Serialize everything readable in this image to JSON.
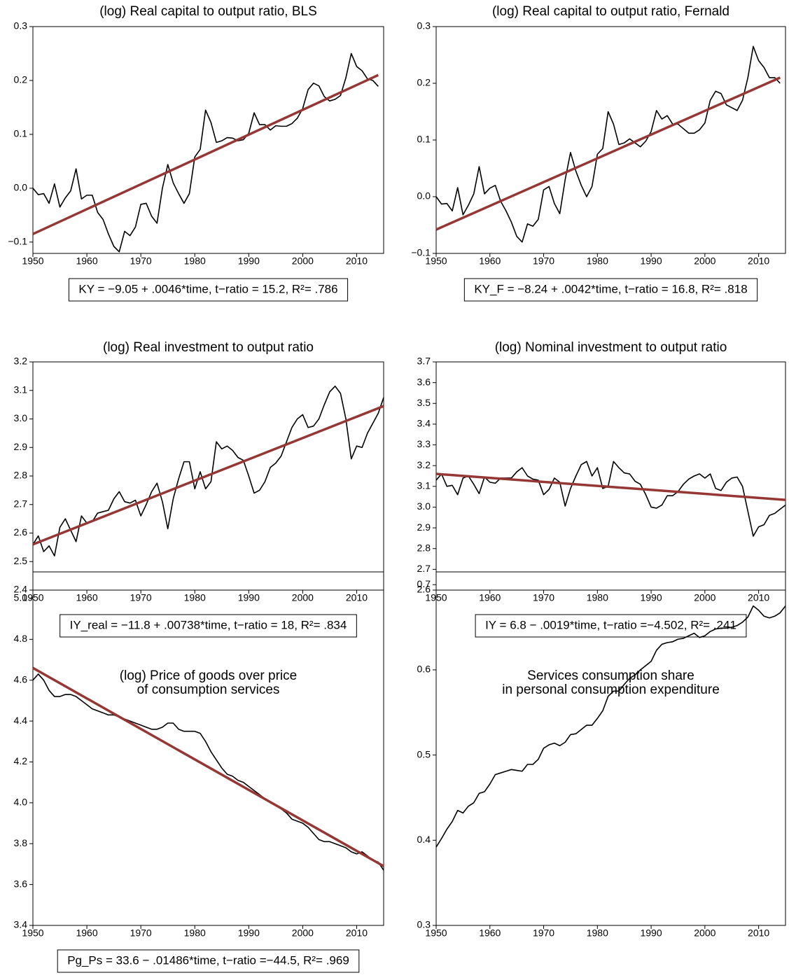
{
  "chart_data": [
    {
      "type": "line",
      "title": [
        "(log) Real capital to output ratio, BLS"
      ],
      "annotation": "KY = −9.05 +  .0046*time, t−ratio = 15.2,  R²= .786",
      "x": [
        1950,
        1951,
        1952,
        1953,
        1954,
        1955,
        1956,
        1957,
        1958,
        1959,
        1960,
        1961,
        1962,
        1963,
        1964,
        1965,
        1966,
        1967,
        1968,
        1969,
        1970,
        1971,
        1972,
        1973,
        1974,
        1975,
        1976,
        1977,
        1978,
        1979,
        1980,
        1981,
        1982,
        1983,
        1984,
        1985,
        1986,
        1987,
        1988,
        1989,
        1990,
        1991,
        1992,
        1993,
        1994,
        1995,
        1996,
        1997,
        1998,
        1999,
        2000,
        2001,
        2002,
        2003,
        2004,
        2005,
        2006,
        2007,
        2008,
        2009,
        2010,
        2011,
        2012,
        2013,
        2014
      ],
      "series": [
        {
          "color": "#000000",
          "values": [
            0,
            -0.012,
            -0.01,
            -0.028,
            0.008,
            -0.035,
            -0.018,
            -0.005,
            0.036,
            -0.02,
            -0.013,
            -0.013,
            -0.045,
            -0.058,
            -0.085,
            -0.108,
            -0.118,
            -0.08,
            -0.088,
            -0.072,
            -0.03,
            -0.028,
            -0.052,
            -0.065,
            0,
            0.044,
            0.01,
            -0.01,
            -0.028,
            -0.01,
            0.058,
            0.072,
            0.145,
            0.122,
            0.085,
            0.088,
            0.094,
            0.093,
            0.088,
            0.09,
            0.102,
            0.14,
            0.118,
            0.118,
            0.108,
            0.116,
            0.115,
            0.115,
            0.12,
            0.13,
            0.148,
            0.183,
            0.195,
            0.19,
            0.17,
            0.162,
            0.165,
            0.172,
            0.205,
            0.25,
            0.226,
            0.218,
            0.203,
            0.2,
            0.189
          ]
        },
        {
          "color": "#953735",
          "x": [
            1950,
            2014
          ],
          "values": [
            -0.085,
            0.21
          ]
        }
      ],
      "xlim": [
        1950,
        2015
      ],
      "xticks": [
        1950,
        1960,
        1970,
        1980,
        1990,
        2000,
        2010
      ],
      "ylim": [
        -0.121,
        0.3
      ],
      "yticks": [
        {
          "value": -0.1,
          "label": "−0.1"
        },
        {
          "value": 0,
          "label": "0.0"
        },
        0.1,
        0.2,
        0.3
      ]
    },
    {
      "type": "line",
      "title": [
        "(log) Real capital to output ratio, Fernald"
      ],
      "annotation": "KY_F = −8.24 +  .0042*time, t−ratio = 16.8,  R²= .818",
      "x": [
        1950,
        1951,
        1952,
        1953,
        1954,
        1955,
        1956,
        1957,
        1958,
        1959,
        1960,
        1961,
        1962,
        1963,
        1964,
        1965,
        1966,
        1967,
        1968,
        1969,
        1970,
        1971,
        1972,
        1973,
        1974,
        1975,
        1976,
        1977,
        1978,
        1979,
        1980,
        1981,
        1982,
        1983,
        1984,
        1985,
        1986,
        1987,
        1988,
        1989,
        1990,
        1991,
        1992,
        1993,
        1994,
        1995,
        1996,
        1997,
        1998,
        1999,
        2000,
        2001,
        2002,
        2003,
        2004,
        2005,
        2006,
        2007,
        2008,
        2009,
        2010,
        2011,
        2012,
        2013,
        2014
      ],
      "series": [
        {
          "color": "#000000",
          "values": [
            0,
            -0.013,
            -0.012,
            -0.025,
            0.016,
            -0.032,
            -0.015,
            0.005,
            0.053,
            0.005,
            0.015,
            0.02,
            -0.008,
            -0.025,
            -0.045,
            -0.07,
            -0.08,
            -0.048,
            -0.052,
            -0.04,
            0.012,
            0.018,
            -0.012,
            -0.03,
            0.03,
            0.078,
            0.045,
            0.02,
            0,
            0.018,
            0.075,
            0.085,
            0.15,
            0.128,
            0.092,
            0.095,
            0.102,
            0.095,
            0.088,
            0.098,
            0.115,
            0.152,
            0.137,
            0.143,
            0.128,
            0.128,
            0.12,
            0.112,
            0.112,
            0.118,
            0.13,
            0.17,
            0.186,
            0.182,
            0.162,
            0.157,
            0.152,
            0.17,
            0.21,
            0.265,
            0.24,
            0.228,
            0.21,
            0.21,
            0.2
          ]
        },
        {
          "color": "#953735",
          "x": [
            1950,
            2014
          ],
          "values": [
            -0.058,
            0.21
          ]
        }
      ],
      "xlim": [
        1950,
        2015
      ],
      "xticks": [
        1950,
        1960,
        1970,
        1980,
        1990,
        2000,
        2010
      ],
      "ylim": [
        -0.1,
        0.3
      ],
      "yticks": [
        {
          "value": -0.1,
          "label": "−0.1"
        },
        {
          "value": 0,
          "label": "0.0"
        },
        0.1,
        0.2,
        0.3
      ]
    },
    {
      "type": "line",
      "title": [
        "(log) Real investment to output ratio"
      ],
      "annotation": "IY_real = −11.8 + .00738*time, t−ratio =   18,  R²= .834",
      "x": [
        1950,
        1951,
        1952,
        1953,
        1954,
        1955,
        1956,
        1957,
        1958,
        1959,
        1960,
        1961,
        1962,
        1963,
        1964,
        1965,
        1966,
        1967,
        1968,
        1969,
        1970,
        1971,
        1972,
        1973,
        1974,
        1975,
        1976,
        1977,
        1978,
        1979,
        1980,
        1981,
        1982,
        1983,
        1984,
        1985,
        1986,
        1987,
        1988,
        1989,
        1990,
        1991,
        1992,
        1993,
        1994,
        1995,
        1996,
        1997,
        1998,
        1999,
        2000,
        2001,
        2002,
        2003,
        2004,
        2005,
        2006,
        2007,
        2008,
        2009,
        2010,
        2011,
        2012,
        2013,
        2014,
        2015
      ],
      "series": [
        {
          "color": "#000000",
          "values": [
            2.56,
            2.59,
            2.535,
            2.555,
            2.52,
            2.62,
            2.65,
            2.61,
            2.57,
            2.66,
            2.635,
            2.64,
            2.67,
            2.675,
            2.68,
            2.72,
            2.745,
            2.71,
            2.705,
            2.715,
            2.66,
            2.7,
            2.745,
            2.775,
            2.71,
            2.615,
            2.72,
            2.79,
            2.85,
            2.85,
            2.755,
            2.815,
            2.755,
            2.78,
            2.92,
            2.895,
            2.905,
            2.89,
            2.865,
            2.855,
            2.8,
            2.74,
            2.75,
            2.78,
            2.83,
            2.845,
            2.87,
            2.92,
            2.97,
            3,
            3.015,
            2.97,
            2.975,
            3,
            3.05,
            3.095,
            3.115,
            3.09,
            3,
            2.86,
            2.905,
            2.9,
            2.95,
            2.985,
            3.02,
            3.075
          ]
        },
        {
          "color": "#953735",
          "x": [
            1950,
            2015
          ],
          "values": [
            2.56,
            3.045
          ]
        }
      ],
      "xlim": [
        1950,
        2015
      ],
      "xticks": [
        1950,
        1960,
        1970,
        1980,
        1990,
        2000,
        2010
      ],
      "ylim": [
        2.4,
        3.2
      ],
      "yticks": [
        2.4,
        2.5,
        2.6,
        2.7,
        2.8,
        2.9,
        {
          "value": 3,
          "label": "3.0"
        },
        3.1,
        3.2
      ]
    },
    {
      "type": "line",
      "title": [
        "(log) Nominal investment to output ratio"
      ],
      "annotation": "IY =  6.8 −  .0019*time, t−ratio =−4.502,  R²= .241",
      "x": [
        1950,
        1951,
        1952,
        1953,
        1954,
        1955,
        1956,
        1957,
        1958,
        1959,
        1960,
        1961,
        1962,
        1963,
        1964,
        1965,
        1966,
        1967,
        1968,
        1969,
        1970,
        1971,
        1972,
        1973,
        1974,
        1975,
        1976,
        1977,
        1978,
        1979,
        1980,
        1981,
        1982,
        1983,
        1984,
        1985,
        1986,
        1987,
        1988,
        1989,
        1990,
        1991,
        1992,
        1993,
        1994,
        1995,
        1996,
        1997,
        1998,
        1999,
        2000,
        2001,
        2002,
        2003,
        2004,
        2005,
        2006,
        2007,
        2008,
        2009,
        2010,
        2011,
        2012,
        2013,
        2014,
        2015
      ],
      "series": [
        {
          "color": "#000000",
          "values": [
            3.13,
            3.16,
            3.1,
            3.105,
            3.06,
            3.14,
            3.15,
            3.11,
            3.065,
            3.145,
            3.12,
            3.115,
            3.14,
            3.14,
            3.14,
            3.17,
            3.19,
            3.15,
            3.135,
            3.13,
            3.06,
            3.085,
            3.14,
            3.12,
            3.005,
            3.09,
            3.15,
            3.205,
            3.22,
            3.15,
            3.19,
            3.09,
            3.1,
            3.22,
            3.19,
            3.165,
            3.16,
            3.125,
            3.11,
            3.06,
            3,
            2.995,
            3.01,
            3.055,
            3.055,
            3.075,
            3.11,
            3.135,
            3.15,
            3.16,
            3.14,
            3.16,
            3.09,
            3.08,
            3.12,
            3.14,
            3.145,
            3.1,
            2.98,
            2.86,
            2.905,
            2.915,
            2.96,
            2.97,
            2.99,
            3.01
          ]
        },
        {
          "color": "#953735",
          "x": [
            1950,
            2015
          ],
          "values": [
            3.16,
            3.035
          ]
        }
      ],
      "xlim": [
        1950,
        2015
      ],
      "xticks": [
        1950,
        1960,
        1970,
        1980,
        1990,
        2000,
        2010
      ],
      "ylim": [
        2.6,
        3.7
      ],
      "yticks": [
        2.6,
        2.7,
        2.8,
        2.9,
        {
          "value": 3,
          "label": "3.0"
        },
        3.1,
        3.2,
        3.3,
        3.4,
        3.5,
        3.6,
        3.7
      ]
    },
    {
      "type": "line",
      "title": [
        "(log) Price of goods over price",
        "of consumption services"
      ],
      "annotation": "Pg_Ps =  33.6 −  .01486*time, t−ratio =−44.5,  R²= .969",
      "x": [
        1950,
        1951,
        1952,
        1953,
        1954,
        1955,
        1956,
        1957,
        1958,
        1959,
        1960,
        1961,
        1962,
        1963,
        1964,
        1965,
        1966,
        1967,
        1968,
        1969,
        1970,
        1971,
        1972,
        1973,
        1974,
        1975,
        1976,
        1977,
        1978,
        1979,
        1980,
        1981,
        1982,
        1983,
        1984,
        1985,
        1986,
        1987,
        1988,
        1989,
        1990,
        1991,
        1992,
        1993,
        1994,
        1995,
        1996,
        1997,
        1998,
        1999,
        2000,
        2001,
        2002,
        2003,
        2004,
        2005,
        2006,
        2007,
        2008,
        2009,
        2010,
        2011,
        2012,
        2013,
        2014,
        2015
      ],
      "series": [
        {
          "color": "#000000",
          "values": [
            4.6,
            4.63,
            4.6,
            4.55,
            4.52,
            4.52,
            4.53,
            4.53,
            4.52,
            4.5,
            4.48,
            4.46,
            4.45,
            4.44,
            4.43,
            4.43,
            4.42,
            4.41,
            4.4,
            4.39,
            4.38,
            4.37,
            4.36,
            4.36,
            4.37,
            4.39,
            4.39,
            4.36,
            4.35,
            4.35,
            4.35,
            4.34,
            4.3,
            4.25,
            4.21,
            4.17,
            4.14,
            4.13,
            4.11,
            4.1,
            4.08,
            4.06,
            4.04,
            4.02,
            4,
            3.99,
            3.97,
            3.95,
            3.92,
            3.91,
            3.9,
            3.88,
            3.85,
            3.82,
            3.81,
            3.81,
            3.8,
            3.79,
            3.78,
            3.76,
            3.75,
            3.76,
            3.74,
            3.72,
            3.71,
            3.67
          ]
        },
        {
          "color": "#953735",
          "x": [
            1950,
            2015
          ],
          "values": [
            4.66,
            3.69
          ]
        }
      ],
      "xlim": [
        1950,
        2015
      ],
      "xticks": [
        1950,
        1960,
        1970,
        1980,
        1990,
        2000,
        2010
      ],
      "ylim": [
        3.4,
        5.13
      ],
      "yticks": [
        3.4,
        3.6,
        3.8,
        {
          "value": 4,
          "label": "4.0"
        },
        4.2,
        4.4,
        4.6,
        4.8,
        {
          "value": 5,
          "label": "5.0"
        }
      ]
    },
    {
      "type": "line",
      "title": [
        "Services consumption share",
        "in personal consumption expenditure"
      ],
      "x": [
        1950,
        1951,
        1952,
        1953,
        1954,
        1955,
        1956,
        1957,
        1958,
        1959,
        1960,
        1961,
        1962,
        1963,
        1964,
        1965,
        1966,
        1967,
        1968,
        1969,
        1970,
        1971,
        1972,
        1973,
        1974,
        1975,
        1976,
        1977,
        1978,
        1979,
        1980,
        1981,
        1982,
        1983,
        1984,
        1985,
        1986,
        1987,
        1988,
        1989,
        1990,
        1991,
        1992,
        1993,
        1994,
        1995,
        1996,
        1997,
        1998,
        1999,
        2000,
        2001,
        2002,
        2003,
        2004,
        2005,
        2006,
        2007,
        2008,
        2009,
        2010,
        2011,
        2012,
        2013,
        2014,
        2015
      ],
      "series": [
        {
          "color": "#000000",
          "values": [
            0.392,
            0.402,
            0.413,
            0.422,
            0.435,
            0.432,
            0.44,
            0.444,
            0.455,
            0.457,
            0.466,
            0.477,
            0.479,
            0.481,
            0.483,
            0.482,
            0.481,
            0.489,
            0.489,
            0.495,
            0.508,
            0.512,
            0.514,
            0.511,
            0.515,
            0.524,
            0.525,
            0.53,
            0.535,
            0.535,
            0.543,
            0.552,
            0.569,
            0.575,
            0.575,
            0.583,
            0.59,
            0.594,
            0.6,
            0.605,
            0.61,
            0.623,
            0.63,
            0.632,
            0.633,
            0.636,
            0.637,
            0.64,
            0.643,
            0.638,
            0.64,
            0.645,
            0.648,
            0.649,
            0.649,
            0.65,
            0.652,
            0.656,
            0.662,
            0.675,
            0.67,
            0.663,
            0.661,
            0.663,
            0.667,
            0.675
          ]
        }
      ],
      "xlim": [
        1950,
        2015
      ],
      "xticks": [
        1950,
        1960,
        1970,
        1980,
        1990,
        2000,
        2010
      ],
      "ylim": [
        0.3,
        0.715
      ],
      "yticks": [
        0.3,
        0.4,
        0.5,
        0.6,
        0.7
      ]
    }
  ]
}
